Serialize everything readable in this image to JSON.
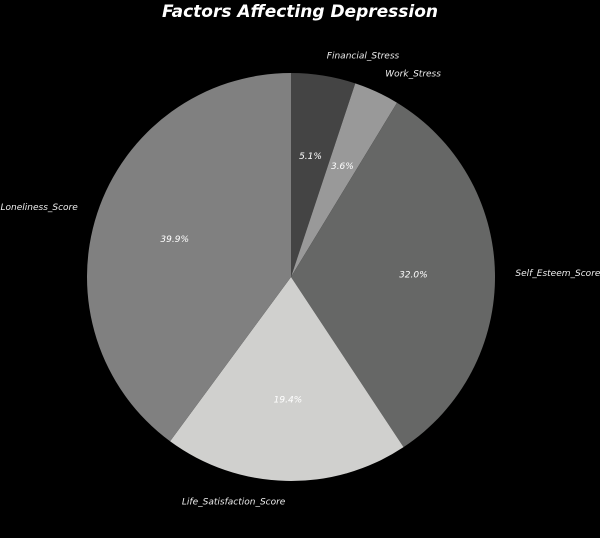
{
  "chart_data": {
    "type": "pie",
    "title": "Factors Affecting Depression",
    "start_angle_deg": 90,
    "direction": "clockwise",
    "slices": [
      {
        "label": "Financial_Stress",
        "value": 5.1,
        "pct_label": "5.1%",
        "color": "#444444"
      },
      {
        "label": "Work_Stress",
        "value": 3.6,
        "pct_label": "3.6%",
        "color": "#999999"
      },
      {
        "label": "Self_Esteem_Score",
        "value": 32.0,
        "pct_label": "32.0%",
        "color": "#666766"
      },
      {
        "label": "Life_Satisfaction_Score",
        "value": 19.4,
        "pct_label": "19.4%",
        "color": "#d0d0ce"
      },
      {
        "label": "Loneliness_Score",
        "value": 39.9,
        "pct_label": "39.9%",
        "color": "#808080"
      }
    ],
    "background": "#000000"
  }
}
